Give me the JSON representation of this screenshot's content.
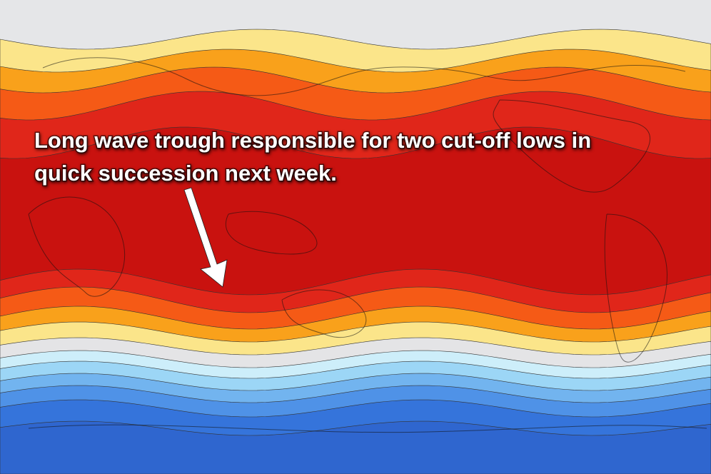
{
  "annotation": {
    "lines": [
      "Long wave trough responsible for two cut-off lows in",
      "quick succession next week."
    ]
  }
}
